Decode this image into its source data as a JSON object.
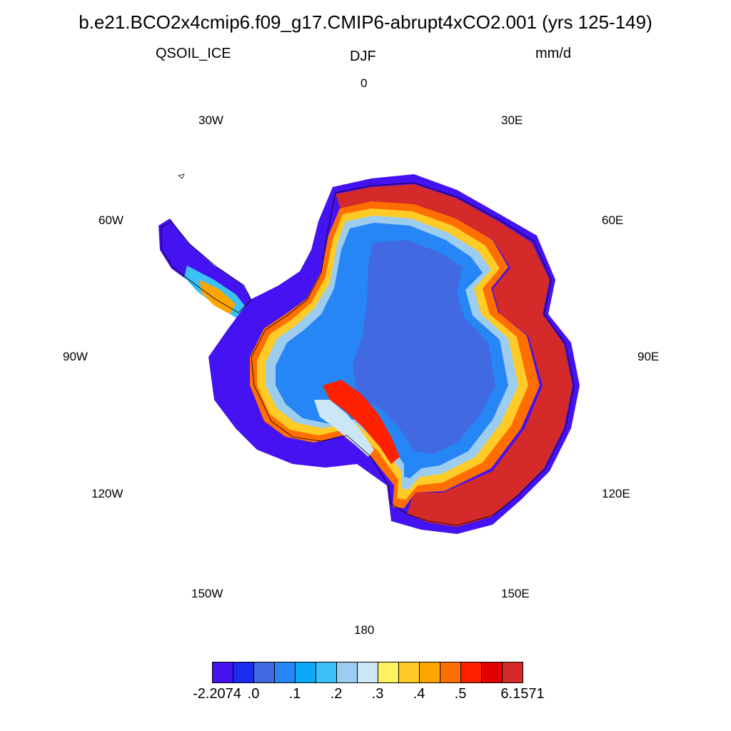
{
  "title": "b.e21.BCO2x4cmip6.f09_g17.CMIP6-abrupt4xCO2.001 (yrs 125-149)",
  "variable": "QSOIL_ICE",
  "season": "DJF",
  "units": "mm/d",
  "longitude_labels": [
    "0",
    "30E",
    "60E",
    "90E",
    "120E",
    "150E",
    "180",
    "150W",
    "120W",
    "90W",
    "60W",
    "30W"
  ],
  "colorbar": {
    "colors": [
      "#4512F2",
      "#1A2CF0",
      "#4169E1",
      "#2686F5",
      "#0DA8F7",
      "#3CC0F5",
      "#9CCDEE",
      "#CBE6F7",
      "#FFF261",
      "#FFCB26",
      "#FFA500",
      "#FF6E00",
      "#FF2000",
      "#E00000",
      "#D42A2A"
    ],
    "labels": [
      "-2.2074",
      ".0",
      ".1",
      ".2",
      ".3",
      ".4",
      ".5",
      "6.1571"
    ]
  }
}
